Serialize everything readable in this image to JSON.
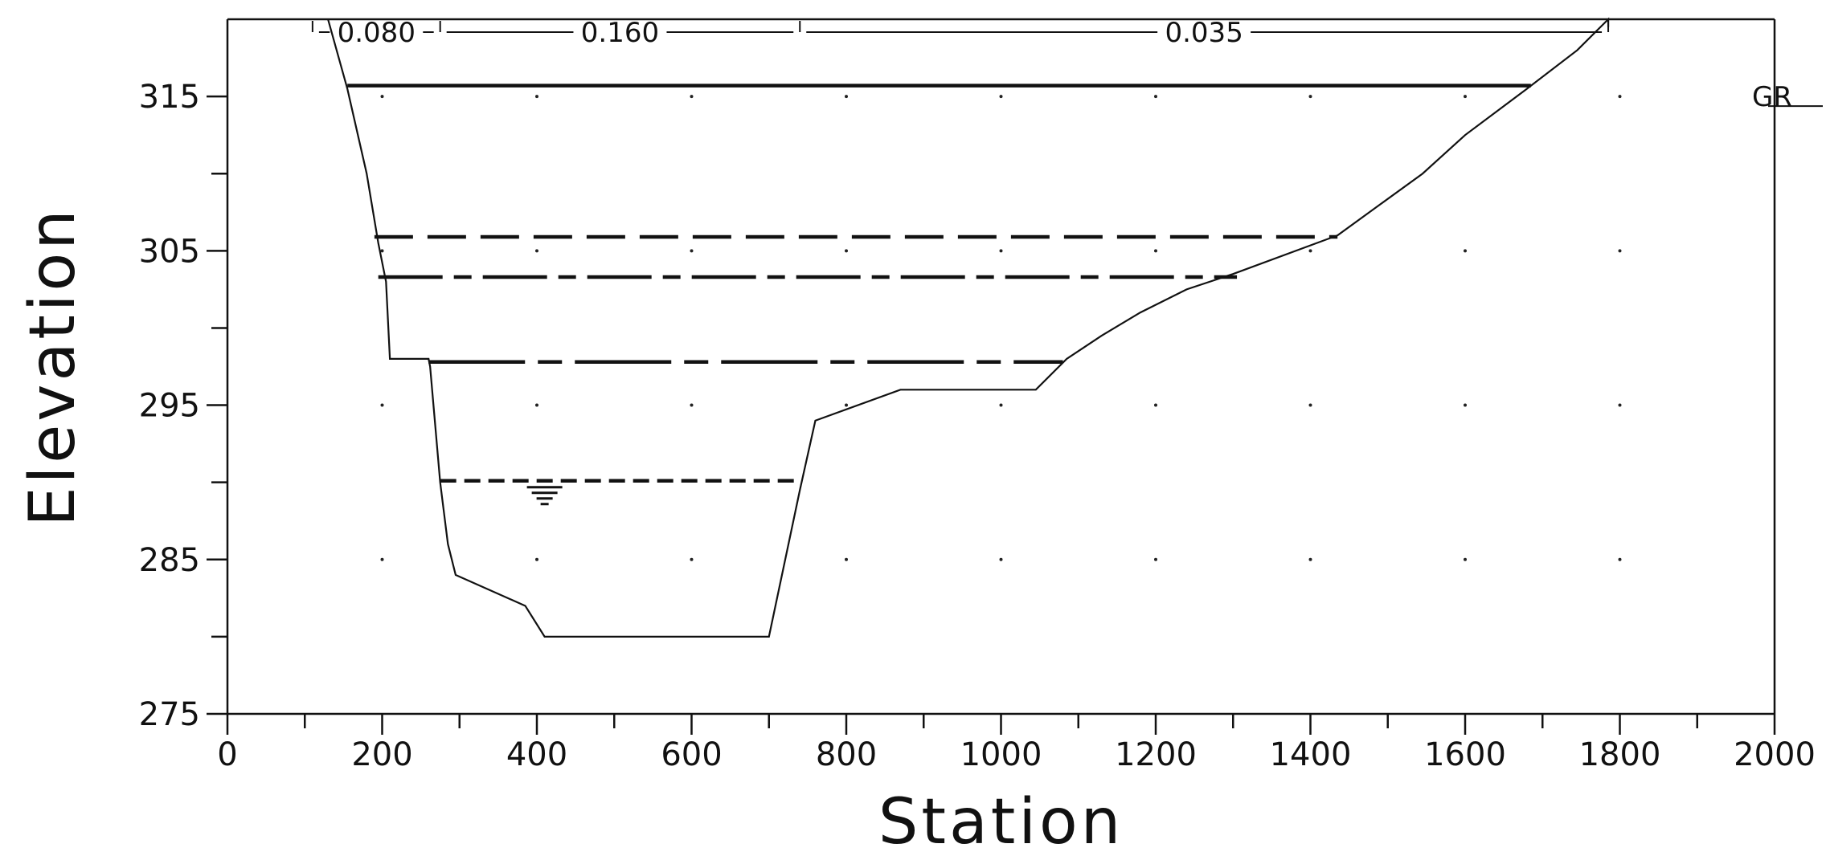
{
  "chart_data": {
    "type": "line",
    "title": "",
    "xlabel": "Station",
    "ylabel": "Elevation",
    "xlim": [
      0,
      2000
    ],
    "ylim": [
      275,
      320
    ],
    "x_ticks": [
      0,
      200,
      400,
      600,
      800,
      1000,
      1200,
      1400,
      1600,
      1800,
      2000
    ],
    "y_ticks": [
      275,
      285,
      295,
      305,
      315
    ],
    "grid": "dotted",
    "legend": "top-right",
    "ground": {
      "name": "GR",
      "x": [
        130,
        155,
        180,
        195,
        205,
        210,
        260,
        262,
        275,
        285,
        295,
        385,
        410,
        700,
        740,
        760,
        870,
        1045,
        1085,
        1130,
        1180,
        1240,
        1300,
        1435,
        1490,
        1545,
        1600,
        1680,
        1745,
        1785,
        1785
      ],
      "y": [
        320,
        315.5,
        310,
        305.5,
        303,
        298,
        298,
        297.5,
        290,
        286,
        284,
        282,
        280,
        280,
        289.5,
        294,
        296,
        296,
        298,
        299.5,
        301,
        302.5,
        303.5,
        306,
        308,
        310,
        312.5,
        315.5,
        318,
        320,
        319.5
      ]
    },
    "water_surfaces": [
      {
        "style": "solid",
        "y": 315.7,
        "x": [
          155,
          1685
        ]
      },
      {
        "style": "long-dash",
        "y": 305.9,
        "x": [
          190,
          1435
        ]
      },
      {
        "style": "dash-dot",
        "y": 303.3,
        "x": [
          195,
          1305
        ]
      },
      {
        "style": "dash-dot-long",
        "y": 297.8,
        "x": [
          260,
          1080
        ]
      },
      {
        "style": "dash",
        "y": 290.1,
        "x": [
          275,
          740
        ]
      }
    ],
    "manning_n": [
      {
        "label": "0.080",
        "from": 110,
        "to": 275
      },
      {
        "label": "0.160",
        "from": 275,
        "to": 740
      },
      {
        "label": "0.035",
        "from": 740,
        "to": 1785
      }
    ]
  }
}
